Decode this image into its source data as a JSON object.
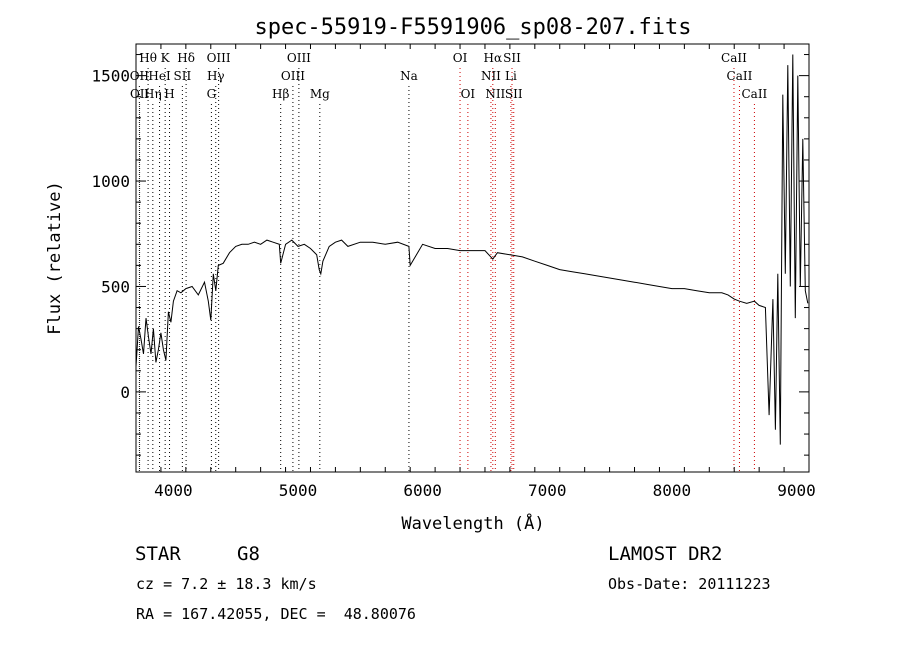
{
  "chart_data": {
    "type": "line",
    "title": "spec-55919-F5591906_sp08-207.fits",
    "xlabel": "Wavelength (Å)",
    "ylabel": "Flux (relative)",
    "xlim": [
      3700,
      9100
    ],
    "ylim": [
      -380,
      1650
    ],
    "x_ticks": [
      4000,
      5000,
      6000,
      7000,
      8000,
      9000
    ],
    "y_ticks": [
      0,
      500,
      1000,
      1500
    ],
    "grid": false,
    "series": [
      {
        "x": [
          3700,
          3720,
          3740,
          3760,
          3780,
          3800,
          3820,
          3840,
          3860,
          3880,
          3900,
          3920,
          3940,
          3960,
          3980,
          4000,
          4030,
          4060,
          4100,
          4150,
          4200,
          4250,
          4280,
          4300,
          4320,
          4340,
          4360,
          4400,
          4450,
          4500,
          4550,
          4600,
          4650,
          4700,
          4750,
          4800,
          4850,
          4861,
          4900,
          4950,
          5000,
          5050,
          5100,
          5150,
          5170,
          5183,
          5200,
          5250,
          5300,
          5350,
          5400,
          5500,
          5600,
          5700,
          5800,
          5890,
          5900,
          6000,
          6100,
          6200,
          6300,
          6400,
          6500,
          6563,
          6600,
          6700,
          6800,
          6900,
          7000,
          7100,
          7200,
          7300,
          7400,
          7500,
          7600,
          7700,
          7800,
          7900,
          8000,
          8100,
          8200,
          8300,
          8400,
          8450,
          8500,
          8542,
          8600,
          8662,
          8700,
          8750,
          8780,
          8810,
          8830,
          8850,
          8870,
          8890,
          8910,
          8930,
          8950,
          8970,
          8990,
          9010,
          9030,
          9050,
          9070,
          9090
        ],
        "y": [
          120,
          310,
          250,
          180,
          350,
          260,
          180,
          300,
          140,
          200,
          280,
          200,
          150,
          380,
          330,
          430,
          480,
          470,
          490,
          500,
          460,
          520,
          430,
          340,
          560,
          480,
          600,
          610,
          660,
          690,
          700,
          700,
          710,
          700,
          720,
          710,
          700,
          610,
          700,
          720,
          690,
          700,
          680,
          650,
          580,
          560,
          620,
          690,
          710,
          720,
          690,
          710,
          710,
          700,
          710,
          690,
          600,
          700,
          680,
          680,
          670,
          670,
          670,
          630,
          660,
          650,
          640,
          620,
          600,
          580,
          570,
          560,
          550,
          540,
          530,
          520,
          510,
          500,
          490,
          490,
          480,
          470,
          470,
          460,
          440,
          430,
          420,
          430,
          410,
          400,
          -110,
          440,
          -180,
          560,
          -250,
          1410,
          560,
          1550,
          500,
          1600,
          350,
          1500,
          500,
          1200,
          480,
          420
        ]
      }
    ],
    "line_markers": [
      {
        "label": "Hθ",
        "x": 3797,
        "row": 0,
        "color": "#000000"
      },
      {
        "label": "K",
        "x": 3934,
        "row": 0,
        "color": "#000000"
      },
      {
        "label": "Hδ",
        "x": 4102,
        "row": 0,
        "color": "#000000"
      },
      {
        "label": "OIII",
        "x": 4363,
        "row": 0,
        "color": "#000000"
      },
      {
        "label": "OIII",
        "x": 5007,
        "row": 0,
        "color": "#000000"
      },
      {
        "label": "OI",
        "x": 6300,
        "row": 0,
        "color": "#cc0000"
      },
      {
        "label": "Hα",
        "x": 6563,
        "row": 0,
        "color": "#cc0000"
      },
      {
        "label": "SII",
        "x": 6717,
        "row": 0,
        "color": "#cc0000"
      },
      {
        "label": "CaII",
        "x": 8498,
        "row": 0,
        "color": "#cc0000"
      },
      {
        "label": "OII",
        "x": 3727,
        "row": 1,
        "color": "#000000"
      },
      {
        "label": "HeI",
        "x": 3889,
        "row": 1,
        "color": "#000000"
      },
      {
        "label": "SII",
        "x": 4072,
        "row": 1,
        "color": "#000000"
      },
      {
        "label": "Hγ",
        "x": 4340,
        "row": 1,
        "color": "#000000"
      },
      {
        "label": "OIII",
        "x": 4959,
        "row": 1,
        "color": "#000000"
      },
      {
        "label": "Na",
        "x": 5890,
        "row": 1,
        "color": "#000000"
      },
      {
        "label": "NII",
        "x": 6548,
        "row": 1,
        "color": "#cc0000"
      },
      {
        "label": "Li",
        "x": 6708,
        "row": 1,
        "color": "#cc0000"
      },
      {
        "label": "CaII",
        "x": 8542,
        "row": 1,
        "color": "#cc0000"
      },
      {
        "label": "OII",
        "x": 3729,
        "row": 2,
        "color": "#000000"
      },
      {
        "label": "Hη",
        "x": 3835,
        "row": 2,
        "color": "#000000"
      },
      {
        "label": "H",
        "x": 3969,
        "row": 2,
        "color": "#000000"
      },
      {
        "label": "G",
        "x": 4305,
        "row": 2,
        "color": "#000000"
      },
      {
        "label": "Hβ",
        "x": 4861,
        "row": 2,
        "color": "#000000"
      },
      {
        "label": "Mg",
        "x": 5175,
        "row": 2,
        "color": "#000000"
      },
      {
        "label": "OI",
        "x": 6363,
        "row": 2,
        "color": "#cc0000"
      },
      {
        "label": "NII",
        "x": 6583,
        "row": 2,
        "color": "#cc0000"
      },
      {
        "label": "SII",
        "x": 6731,
        "row": 2,
        "color": "#cc0000"
      },
      {
        "label": "CaII",
        "x": 8662,
        "row": 2,
        "color": "#cc0000"
      }
    ]
  },
  "info": {
    "object_class": "STAR",
    "subclass": "G8",
    "survey": "LAMOST DR2",
    "redshift": "cz = 7.2 ± 18.3 km/s",
    "obs_date": "Obs-Date: 20111223",
    "coords": "RA = 167.42055, DEC =  48.80076"
  }
}
